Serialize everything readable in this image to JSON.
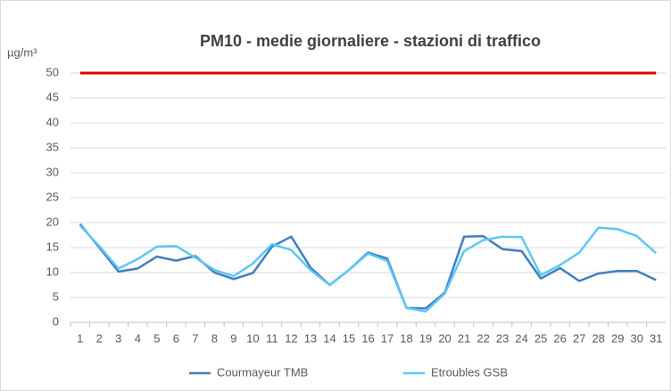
{
  "chart_data": {
    "type": "line",
    "title": "PM10 - medie giornaliere - stazioni di traffico",
    "y_label": "µg/m³",
    "categories": [
      "1",
      "2",
      "3",
      "4",
      "5",
      "6",
      "7",
      "8",
      "9",
      "10",
      "11",
      "12",
      "13",
      "14",
      "15",
      "16",
      "17",
      "18",
      "19",
      "20",
      "21",
      "22",
      "23",
      "24",
      "25",
      "26",
      "27",
      "28",
      "29",
      "30",
      "31"
    ],
    "series": [
      {
        "name": "Courmayeur TMB",
        "color": "#3f7fc0",
        "values": [
          19.7,
          15,
          10.2,
          10.8,
          13.2,
          12.4,
          13.3,
          10,
          8.7,
          9.9,
          15.2,
          17.2,
          11,
          7.5,
          10.5,
          14,
          12.8,
          2.9,
          2.8,
          6,
          17.2,
          17.3,
          14.7,
          14.3,
          8.8,
          10.9,
          8.3,
          9.8,
          10.3,
          10.3,
          8.5
        ]
      },
      {
        "name": "Etroubles GSB",
        "color": "#5cc8f5",
        "values": [
          19.4,
          15.3,
          10.8,
          12.7,
          15.2,
          15.3,
          13,
          10.5,
          9.3,
          11.8,
          15.7,
          14.5,
          10.5,
          7.5,
          10.5,
          13.8,
          12.3,
          2.9,
          2.2,
          5.8,
          14.3,
          16.5,
          17.2,
          17.1,
          9.5,
          11.5,
          14,
          19,
          18.7,
          17.3,
          13.9
        ]
      }
    ],
    "threshold": {
      "value": 50,
      "color": "#e00000"
    },
    "ylim": [
      0,
      50
    ],
    "yticks": [
      0,
      5,
      10,
      15,
      20,
      25,
      30,
      35,
      40,
      45,
      50
    ],
    "grid": true,
    "legend": "bottom"
  }
}
